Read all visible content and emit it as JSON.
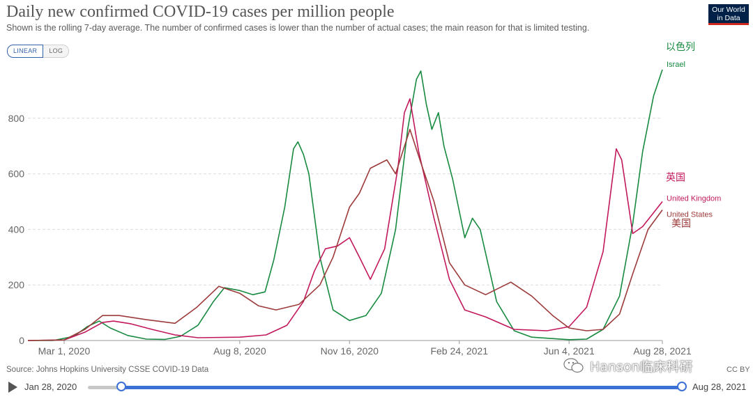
{
  "header": {
    "title": "Daily new confirmed COVID-19 cases per million people",
    "subtitle": "Shown is the rolling 7-day average. The number of confirmed cases is lower than the number of actual cases; the main reason for that is limited testing.",
    "logo_line1": "Our World",
    "logo_line2": "in Data"
  },
  "controls": {
    "linear_label": "LINEAR",
    "log_label": "LOG",
    "active_scale": "linear"
  },
  "footer": {
    "source": "Source: Johns Hopkins University CSSE COVID-19 Data",
    "license": "CC BY",
    "watermark": "Hanson临床科研"
  },
  "timeline": {
    "start_label": "Jan 28, 2020",
    "end_label": "Aug 28, 2021",
    "start_fraction": 0.056,
    "end_fraction": 1.0
  },
  "chart_data": {
    "type": "line",
    "title": "Daily new confirmed COVID-19 cases per million people",
    "ylim": [
      0,
      1000
    ],
    "y_ticks": [
      0,
      200,
      400,
      600,
      800
    ],
    "x_tick_labels": [
      "Mar 1, 2020",
      "Aug 8, 2020",
      "Nov 16, 2020",
      "Feb 24, 2021",
      "Jun 4, 2021",
      "Aug 28, 2021"
    ],
    "x_tick_dates": [
      "2020-03-01",
      "2020-08-08",
      "2020-11-16",
      "2021-02-24",
      "2021-06-04",
      "2021-08-28"
    ],
    "x_range": [
      "2020-01-28",
      "2021-08-28"
    ],
    "grid": true,
    "annotations": [
      {
        "text": "以色列",
        "series": "Israel"
      },
      {
        "text": "英国",
        "series": "United Kingdom"
      },
      {
        "text": "美国",
        "series": "United States"
      }
    ],
    "series": [
      {
        "name": "Israel",
        "color": "#178a40",
        "points": [
          [
            "2020-01-28",
            0
          ],
          [
            "2020-02-20",
            0
          ],
          [
            "2020-03-10",
            15
          ],
          [
            "2020-03-22",
            50
          ],
          [
            "2020-04-02",
            70
          ],
          [
            "2020-04-12",
            45
          ],
          [
            "2020-04-28",
            18
          ],
          [
            "2020-05-15",
            5
          ],
          [
            "2020-06-01",
            4
          ],
          [
            "2020-06-15",
            15
          ],
          [
            "2020-07-01",
            55
          ],
          [
            "2020-07-15",
            140
          ],
          [
            "2020-07-25",
            190
          ],
          [
            "2020-08-08",
            180
          ],
          [
            "2020-08-20",
            165
          ],
          [
            "2020-08-31",
            175
          ],
          [
            "2020-09-08",
            290
          ],
          [
            "2020-09-18",
            480
          ],
          [
            "2020-09-26",
            690
          ],
          [
            "2020-09-30",
            715
          ],
          [
            "2020-10-05",
            670
          ],
          [
            "2020-10-10",
            600
          ],
          [
            "2020-10-20",
            300
          ],
          [
            "2020-11-01",
            110
          ],
          [
            "2020-11-16",
            72
          ],
          [
            "2020-12-01",
            90
          ],
          [
            "2020-12-15",
            170
          ],
          [
            "2020-12-28",
            400
          ],
          [
            "2021-01-08",
            760
          ],
          [
            "2021-01-16",
            940
          ],
          [
            "2021-01-20",
            970
          ],
          [
            "2021-01-25",
            850
          ],
          [
            "2021-01-30",
            760
          ],
          [
            "2021-02-05",
            820
          ],
          [
            "2021-02-10",
            700
          ],
          [
            "2021-02-18",
            580
          ],
          [
            "2021-03-01",
            370
          ],
          [
            "2021-03-08",
            440
          ],
          [
            "2021-03-15",
            400
          ],
          [
            "2021-03-30",
            140
          ],
          [
            "2021-04-15",
            35
          ],
          [
            "2021-05-01",
            12
          ],
          [
            "2021-06-04",
            3
          ],
          [
            "2021-06-20",
            5
          ],
          [
            "2021-07-05",
            40
          ],
          [
            "2021-07-20",
            160
          ],
          [
            "2021-08-01",
            420
          ],
          [
            "2021-08-10",
            680
          ],
          [
            "2021-08-20",
            880
          ],
          [
            "2021-08-28",
            975
          ]
        ]
      },
      {
        "name": "United Kingdom",
        "color": "#c2185b",
        "points": [
          [
            "2020-01-28",
            0
          ],
          [
            "2020-03-01",
            2
          ],
          [
            "2020-03-20",
            30
          ],
          [
            "2020-04-05",
            65
          ],
          [
            "2020-04-15",
            70
          ],
          [
            "2020-05-01",
            60
          ],
          [
            "2020-05-20",
            40
          ],
          [
            "2020-06-10",
            20
          ],
          [
            "2020-07-01",
            10
          ],
          [
            "2020-08-08",
            12
          ],
          [
            "2020-09-01",
            20
          ],
          [
            "2020-09-20",
            55
          ],
          [
            "2020-10-05",
            140
          ],
          [
            "2020-10-15",
            250
          ],
          [
            "2020-10-25",
            330
          ],
          [
            "2020-11-05",
            340
          ],
          [
            "2020-11-16",
            370
          ],
          [
            "2020-11-25",
            300
          ],
          [
            "2020-12-05",
            220
          ],
          [
            "2020-12-18",
            330
          ],
          [
            "2020-12-30",
            620
          ],
          [
            "2021-01-05",
            820
          ],
          [
            "2021-01-10",
            870
          ],
          [
            "2021-01-18",
            680
          ],
          [
            "2021-02-01",
            440
          ],
          [
            "2021-02-15",
            220
          ],
          [
            "2021-03-01",
            110
          ],
          [
            "2021-03-20",
            85
          ],
          [
            "2021-04-15",
            40
          ],
          [
            "2021-05-15",
            35
          ],
          [
            "2021-06-04",
            50
          ],
          [
            "2021-06-20",
            120
          ],
          [
            "2021-07-05",
            320
          ],
          [
            "2021-07-17",
            690
          ],
          [
            "2021-07-22",
            650
          ],
          [
            "2021-08-01",
            385
          ],
          [
            "2021-08-10",
            410
          ],
          [
            "2021-08-20",
            460
          ],
          [
            "2021-08-28",
            500
          ]
        ]
      },
      {
        "name": "United States",
        "color": "#9c3a3a",
        "points": [
          [
            "2020-01-28",
            0
          ],
          [
            "2020-03-01",
            2
          ],
          [
            "2020-03-20",
            40
          ],
          [
            "2020-04-05",
            90
          ],
          [
            "2020-04-20",
            90
          ],
          [
            "2020-05-15",
            75
          ],
          [
            "2020-06-10",
            62
          ],
          [
            "2020-06-30",
            120
          ],
          [
            "2020-07-20",
            195
          ],
          [
            "2020-08-08",
            170
          ],
          [
            "2020-08-25",
            125
          ],
          [
            "2020-09-10",
            110
          ],
          [
            "2020-10-01",
            130
          ],
          [
            "2020-10-20",
            200
          ],
          [
            "2020-11-01",
            300
          ],
          [
            "2020-11-16",
            480
          ],
          [
            "2020-11-25",
            530
          ],
          [
            "2020-12-05",
            620
          ],
          [
            "2020-12-20",
            650
          ],
          [
            "2020-12-28",
            600
          ],
          [
            "2021-01-10",
            760
          ],
          [
            "2021-01-20",
            640
          ],
          [
            "2021-02-01",
            500
          ],
          [
            "2021-02-15",
            280
          ],
          [
            "2021-03-01",
            200
          ],
          [
            "2021-03-20",
            165
          ],
          [
            "2021-04-12",
            210
          ],
          [
            "2021-05-01",
            160
          ],
          [
            "2021-05-20",
            90
          ],
          [
            "2021-06-04",
            45
          ],
          [
            "2021-06-20",
            35
          ],
          [
            "2021-07-05",
            40
          ],
          [
            "2021-07-20",
            95
          ],
          [
            "2021-08-01",
            240
          ],
          [
            "2021-08-15",
            400
          ],
          [
            "2021-08-28",
            470
          ]
        ]
      }
    ]
  }
}
